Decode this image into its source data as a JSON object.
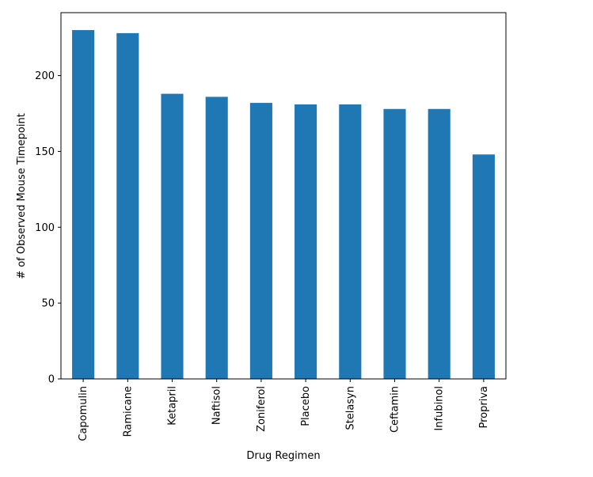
{
  "chart_data": {
    "type": "bar",
    "title": "",
    "xlabel": "Drug Regimen",
    "ylabel": "# of Observed Mouse Timepoint",
    "categories": [
      "Capomulin",
      "Ramicane",
      "Ketapril",
      "Naftisol",
      "Zoniferol",
      "Placebo",
      "Stelasyn",
      "Ceftamin",
      "Infubinol",
      "Propriva"
    ],
    "values": [
      230,
      228,
      188,
      186,
      182,
      181,
      181,
      178,
      178,
      148
    ],
    "ylim": [
      0,
      241.5
    ],
    "yticks": [
      0,
      50,
      100,
      150,
      200
    ],
    "grid": false,
    "bar_color": "#1f77b4"
  }
}
